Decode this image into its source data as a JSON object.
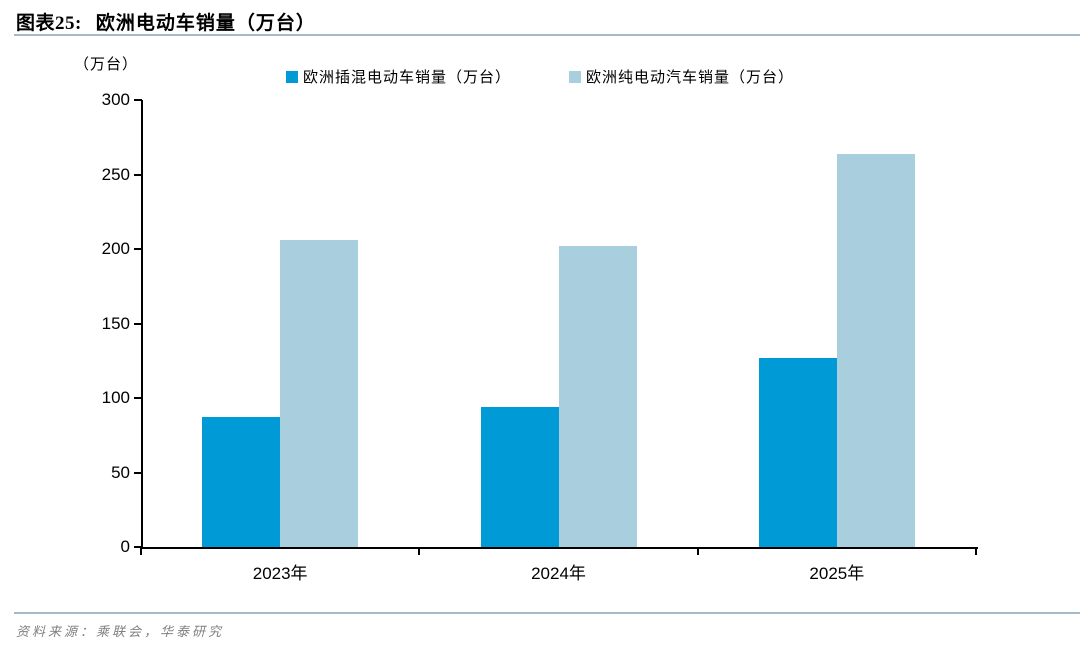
{
  "figure": {
    "label": "图表25:",
    "title": "欧洲电动车销量（万台）"
  },
  "chart_data": {
    "type": "bar",
    "title": "欧洲电动车销量（万台）",
    "unit_label": "（万台）",
    "categories": [
      "2023年",
      "2024年",
      "2025年"
    ],
    "series": [
      {
        "name": "欧洲插混电动车销量（万台）",
        "color": "#009AD6",
        "values": [
          87,
          94,
          127
        ]
      },
      {
        "name": "欧洲纯电动汽车销量（万台）",
        "color": "#A9CFDF",
        "values": [
          206,
          202,
          264
        ]
      }
    ],
    "xlabel": "",
    "ylabel": "（万台）",
    "ylim": [
      0,
      300
    ],
    "y_ticks": [
      0,
      50,
      100,
      150,
      200,
      250,
      300
    ],
    "grid": false,
    "legend_position": "top-center"
  },
  "footer": {
    "source": "资料来源：乘联会，华泰研究"
  },
  "colors": {
    "rule": "#A4B9C9",
    "axis": "#000000",
    "series_phev": "#009AD6",
    "series_bev": "#A9CFDF",
    "source_text": "#808080"
  }
}
